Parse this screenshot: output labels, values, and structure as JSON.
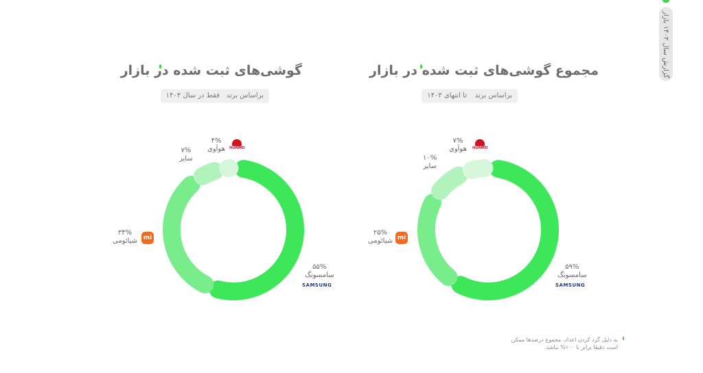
{
  "side_tab": {
    "label": "گزارش سال ۱۴۰۳ بازار"
  },
  "footnote": "به دلیل گرد کردن اعداد، مجموع درصدها ممکن است دقیقا برابر با ۱۰۰% نباشد.",
  "colors": {
    "samsung": "#3ee65a",
    "xiaomi": "#79ec8b",
    "other": "#b2f2bd",
    "huawei": "#d6f7dc",
    "accent": "#3fd64e"
  },
  "chart_data": [
    {
      "type": "pie",
      "style": "donut",
      "title": "مجموع گوشی‌های ثبت شده در بازار",
      "filters": [
        "براساس برند",
        "تا انتهای ۱۴۰۳"
      ],
      "slices": [
        {
          "key": "samsung",
          "name": "سامسونگ",
          "value": 59,
          "label": "۵۹%",
          "brand_mark": "SAMSUNG"
        },
        {
          "key": "xiaomi",
          "name": "شیائومی",
          "value": 25,
          "label": "۲۵%",
          "brand_mark": "mi"
        },
        {
          "key": "other",
          "name": "سایر",
          "value": 10,
          "label": "۱۰%"
        },
        {
          "key": "huawei",
          "name": "هوآوی",
          "value": 7,
          "label": "۷%",
          "brand_mark": "HUAWEI"
        }
      ]
    },
    {
      "type": "pie",
      "style": "donut",
      "title": "گوشی‌های ثبت شده در بازار",
      "filters": [
        "براساس برند",
        "فقط در سال ۱۴۰۳"
      ],
      "slices": [
        {
          "key": "samsung",
          "name": "سامسونگ",
          "value": 55,
          "label": "۵۵%",
          "brand_mark": "SAMSUNG"
        },
        {
          "key": "xiaomi",
          "name": "شیائومی",
          "value": 34,
          "label": "۳۴%",
          "brand_mark": "mi"
        },
        {
          "key": "other",
          "name": "سایر",
          "value": 7,
          "label": "۷%"
        },
        {
          "key": "huawei",
          "name": "هوآوی",
          "value": 4,
          "label": "۴%",
          "brand_mark": "HUAWEI"
        }
      ]
    }
  ]
}
